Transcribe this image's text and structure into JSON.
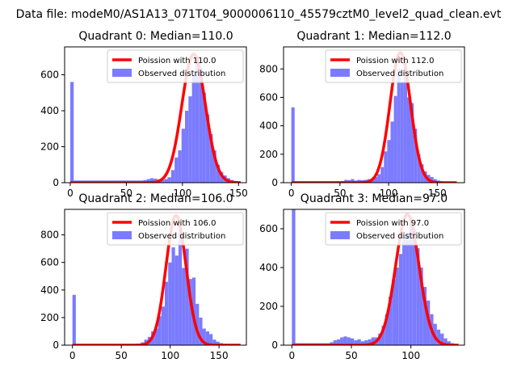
{
  "suptitle": "Data file: modeM0/AS1A13_071T04_9000006110_45579cztM0_level2_quad_clean.evt",
  "colors": {
    "bars": "#7b7bff",
    "fit": "#ff0000",
    "axis": "#000000"
  },
  "chart_data": [
    {
      "type": "bar+line",
      "title": "Quadrant 0: Median=110.0",
      "xlim": [
        -5,
        157
      ],
      "ylim": [
        0,
        755
      ],
      "xticks": [
        0,
        50,
        100,
        150
      ],
      "yticks": [
        0,
        200,
        400,
        600
      ],
      "legend": {
        "placement": "top-right",
        "line_label": "Poission with 110.0",
        "bar_label": "Observed distribution"
      },
      "fit": {
        "name": "Poission with 110.0",
        "mean": 110,
        "peak": 715,
        "x_start": 0,
        "x_end": 152
      },
      "histogram": {
        "bin_width": 3.1,
        "bins": [
          {
            "x": 0,
            "y": 560
          },
          {
            "x": 3.1,
            "y": 12
          },
          {
            "x": 6.2,
            "y": 12
          },
          {
            "x": 9.3,
            "y": 12
          },
          {
            "x": 12.4,
            "y": 12
          },
          {
            "x": 15.5,
            "y": 12
          },
          {
            "x": 18.6,
            "y": 12
          },
          {
            "x": 21.7,
            "y": 12
          },
          {
            "x": 24.8,
            "y": 12
          },
          {
            "x": 27.9,
            "y": 12
          },
          {
            "x": 31,
            "y": 12
          },
          {
            "x": 34.1,
            "y": 12
          },
          {
            "x": 37.2,
            "y": 12
          },
          {
            "x": 40.3,
            "y": 12
          },
          {
            "x": 43.4,
            "y": 12
          },
          {
            "x": 46.5,
            "y": 12
          },
          {
            "x": 49.6,
            "y": 12
          },
          {
            "x": 52.7,
            "y": 12
          },
          {
            "x": 55.8,
            "y": 12
          },
          {
            "x": 58.9,
            "y": 12
          },
          {
            "x": 62,
            "y": 12
          },
          {
            "x": 65.1,
            "y": 15
          },
          {
            "x": 68.2,
            "y": 20
          },
          {
            "x": 71.3,
            "y": 25
          },
          {
            "x": 74.4,
            "y": 22
          },
          {
            "x": 77.5,
            "y": 18
          },
          {
            "x": 80.6,
            "y": 15
          },
          {
            "x": 83.7,
            "y": 20
          },
          {
            "x": 86.8,
            "y": 30
          },
          {
            "x": 89.9,
            "y": 70
          },
          {
            "x": 93,
            "y": 140
          },
          {
            "x": 96.1,
            "y": 180
          },
          {
            "x": 99.2,
            "y": 300
          },
          {
            "x": 102.3,
            "y": 400
          },
          {
            "x": 105.4,
            "y": 480
          },
          {
            "x": 108.5,
            "y": 600
          },
          {
            "x": 111.6,
            "y": 700
          },
          {
            "x": 114.7,
            "y": 640
          },
          {
            "x": 117.8,
            "y": 500
          },
          {
            "x": 120.9,
            "y": 380
          },
          {
            "x": 124,
            "y": 270
          },
          {
            "x": 127.1,
            "y": 180
          },
          {
            "x": 130.2,
            "y": 100
          },
          {
            "x": 133.3,
            "y": 60
          },
          {
            "x": 136.4,
            "y": 40
          },
          {
            "x": 139.5,
            "y": 25
          },
          {
            "x": 142.6,
            "y": 15
          },
          {
            "x": 145.7,
            "y": 8
          },
          {
            "x": 148.8,
            "y": 4
          }
        ]
      }
    },
    {
      "type": "bar+line",
      "title": "Quadrant 1: Median=112.0",
      "xlim": [
        -8,
        178
      ],
      "ylim": [
        0,
        955
      ],
      "xticks": [
        0,
        50,
        100,
        150
      ],
      "yticks": [
        0,
        200,
        400,
        600,
        800
      ],
      "legend": {
        "placement": "top-right",
        "line_label": "Poission with 112.0",
        "bar_label": "Observed distribution"
      },
      "fit": {
        "name": "Poission with 112.0",
        "mean": 112,
        "peak": 915,
        "x_start": 0,
        "x_end": 170
      },
      "histogram": {
        "bin_width": 3.4,
        "bins": [
          {
            "x": 0,
            "y": 530
          },
          {
            "x": 3.4,
            "y": 10
          },
          {
            "x": 6.8,
            "y": 10
          },
          {
            "x": 10.2,
            "y": 10
          },
          {
            "x": 13.6,
            "y": 10
          },
          {
            "x": 17,
            "y": 10
          },
          {
            "x": 20.4,
            "y": 10
          },
          {
            "x": 23.8,
            "y": 10
          },
          {
            "x": 27.2,
            "y": 10
          },
          {
            "x": 30.6,
            "y": 10
          },
          {
            "x": 34,
            "y": 10
          },
          {
            "x": 37.4,
            "y": 10
          },
          {
            "x": 40.8,
            "y": 10
          },
          {
            "x": 44.2,
            "y": 10
          },
          {
            "x": 47.6,
            "y": 10
          },
          {
            "x": 51,
            "y": 12
          },
          {
            "x": 54.4,
            "y": 20
          },
          {
            "x": 57.8,
            "y": 18
          },
          {
            "x": 61.2,
            "y": 25
          },
          {
            "x": 64.6,
            "y": 15
          },
          {
            "x": 68,
            "y": 20
          },
          {
            "x": 71.4,
            "y": 18
          },
          {
            "x": 74.8,
            "y": 20
          },
          {
            "x": 78.2,
            "y": 25
          },
          {
            "x": 81.6,
            "y": 30
          },
          {
            "x": 85,
            "y": 40
          },
          {
            "x": 88.4,
            "y": 60
          },
          {
            "x": 91.8,
            "y": 110
          },
          {
            "x": 95.2,
            "y": 220
          },
          {
            "x": 98.6,
            "y": 300
          },
          {
            "x": 102,
            "y": 430
          },
          {
            "x": 105.4,
            "y": 610
          },
          {
            "x": 108.8,
            "y": 800
          },
          {
            "x": 112.2,
            "y": 710
          },
          {
            "x": 115.6,
            "y": 850
          },
          {
            "x": 119,
            "y": 600
          },
          {
            "x": 122.4,
            "y": 560
          },
          {
            "x": 125.8,
            "y": 380
          },
          {
            "x": 129.2,
            "y": 200
          },
          {
            "x": 132.6,
            "y": 130
          },
          {
            "x": 136,
            "y": 80
          },
          {
            "x": 139.4,
            "y": 55
          },
          {
            "x": 142.8,
            "y": 40
          },
          {
            "x": 146.2,
            "y": 25
          },
          {
            "x": 149.6,
            "y": 15
          },
          {
            "x": 153,
            "y": 10
          },
          {
            "x": 156.4,
            "y": 6
          },
          {
            "x": 159.8,
            "y": 4
          },
          {
            "x": 163.2,
            "y": 2
          },
          {
            "x": 166.6,
            "y": 2
          }
        ]
      }
    },
    {
      "type": "bar+line",
      "title": "Quadrant 2: Median=106.0",
      "xlim": [
        -8,
        178
      ],
      "ylim": [
        0,
        985
      ],
      "xticks": [
        0,
        50,
        100,
        150
      ],
      "yticks": [
        0,
        200,
        400,
        600,
        800
      ],
      "legend": {
        "placement": "top-right",
        "line_label": "Poission with 106.0",
        "bar_label": "Observed distribution"
      },
      "fit": {
        "name": "Poission with 106.0",
        "mean": 106,
        "peak": 940,
        "x_start": 0,
        "x_end": 172
      },
      "histogram": {
        "bin_width": 3.5,
        "bins": [
          {
            "x": 0,
            "y": 365
          },
          {
            "x": 3.5,
            "y": 8
          },
          {
            "x": 7,
            "y": 8
          },
          {
            "x": 10.5,
            "y": 8
          },
          {
            "x": 14,
            "y": 8
          },
          {
            "x": 17.5,
            "y": 8
          },
          {
            "x": 21,
            "y": 8
          },
          {
            "x": 24.5,
            "y": 8
          },
          {
            "x": 28,
            "y": 8
          },
          {
            "x": 31.5,
            "y": 8
          },
          {
            "x": 35,
            "y": 8
          },
          {
            "x": 38.5,
            "y": 8
          },
          {
            "x": 42,
            "y": 8
          },
          {
            "x": 45.5,
            "y": 8
          },
          {
            "x": 49,
            "y": 8
          },
          {
            "x": 52.5,
            "y": 8
          },
          {
            "x": 56,
            "y": 8
          },
          {
            "x": 59.5,
            "y": 8
          },
          {
            "x": 63,
            "y": 8
          },
          {
            "x": 66.5,
            "y": 10
          },
          {
            "x": 70,
            "y": 20
          },
          {
            "x": 73.5,
            "y": 40
          },
          {
            "x": 77,
            "y": 60
          },
          {
            "x": 80.5,
            "y": 100
          },
          {
            "x": 84,
            "y": 120
          },
          {
            "x": 87.5,
            "y": 210
          },
          {
            "x": 91,
            "y": 280
          },
          {
            "x": 94.5,
            "y": 460
          },
          {
            "x": 98,
            "y": 600
          },
          {
            "x": 101.5,
            "y": 710
          },
          {
            "x": 105,
            "y": 650
          },
          {
            "x": 108.5,
            "y": 850
          },
          {
            "x": 112,
            "y": 560
          },
          {
            "x": 115.5,
            "y": 700
          },
          {
            "x": 119,
            "y": 480
          },
          {
            "x": 122.5,
            "y": 490
          },
          {
            "x": 126,
            "y": 300
          },
          {
            "x": 129.5,
            "y": 200
          },
          {
            "x": 133,
            "y": 120
          },
          {
            "x": 136.5,
            "y": 100
          },
          {
            "x": 140,
            "y": 80
          },
          {
            "x": 143.5,
            "y": 40
          },
          {
            "x": 147,
            "y": 25
          },
          {
            "x": 150.5,
            "y": 15
          },
          {
            "x": 154,
            "y": 10
          },
          {
            "x": 157.5,
            "y": 6
          },
          {
            "x": 161,
            "y": 4
          },
          {
            "x": 164.5,
            "y": 3
          },
          {
            "x": 168,
            "y": 2
          }
        ]
      }
    },
    {
      "type": "bar+line",
      "title": "Quadrant 3: Median=97.0",
      "xlim": [
        -7,
        145
      ],
      "ylim": [
        0,
        700
      ],
      "xticks": [
        0,
        50,
        100
      ],
      "yticks": [
        0,
        200,
        400,
        600
      ],
      "legend": {
        "placement": "top-right",
        "line_label": "Poission with 97.0",
        "bar_label": "Observed distribution"
      },
      "fit": {
        "name": "Poission with 97.0",
        "mean": 97,
        "peak": 675,
        "x_start": 0,
        "x_end": 140
      },
      "histogram": {
        "bin_width": 2.9,
        "bins": [
          {
            "x": 0,
            "y": 700
          },
          {
            "x": 2.9,
            "y": 10
          },
          {
            "x": 5.8,
            "y": 10
          },
          {
            "x": 8.7,
            "y": 10
          },
          {
            "x": 11.6,
            "y": 10
          },
          {
            "x": 14.5,
            "y": 10
          },
          {
            "x": 17.4,
            "y": 10
          },
          {
            "x": 20.3,
            "y": 10
          },
          {
            "x": 23.2,
            "y": 10
          },
          {
            "x": 26.1,
            "y": 10
          },
          {
            "x": 29,
            "y": 10
          },
          {
            "x": 31.9,
            "y": 15
          },
          {
            "x": 34.8,
            "y": 25
          },
          {
            "x": 37.7,
            "y": 30
          },
          {
            "x": 40.6,
            "y": 40
          },
          {
            "x": 43.5,
            "y": 45
          },
          {
            "x": 46.4,
            "y": 40
          },
          {
            "x": 49.3,
            "y": 35
          },
          {
            "x": 52.2,
            "y": 25
          },
          {
            "x": 55.1,
            "y": 30
          },
          {
            "x": 58,
            "y": 20
          },
          {
            "x": 60.9,
            "y": 25
          },
          {
            "x": 63.8,
            "y": 30
          },
          {
            "x": 66.7,
            "y": 40
          },
          {
            "x": 69.6,
            "y": 40
          },
          {
            "x": 72.5,
            "y": 60
          },
          {
            "x": 75.4,
            "y": 100
          },
          {
            "x": 78.3,
            "y": 160
          },
          {
            "x": 81.2,
            "y": 250
          },
          {
            "x": 84.1,
            "y": 340
          },
          {
            "x": 87,
            "y": 400
          },
          {
            "x": 89.9,
            "y": 470
          },
          {
            "x": 92.8,
            "y": 560
          },
          {
            "x": 95.7,
            "y": 580
          },
          {
            "x": 98.6,
            "y": 660
          },
          {
            "x": 101.5,
            "y": 600
          },
          {
            "x": 104.4,
            "y": 500
          },
          {
            "x": 107.3,
            "y": 400
          },
          {
            "x": 110.2,
            "y": 300
          },
          {
            "x": 113.1,
            "y": 230
          },
          {
            "x": 116,
            "y": 160
          },
          {
            "x": 118.9,
            "y": 110
          },
          {
            "x": 121.8,
            "y": 80
          },
          {
            "x": 124.7,
            "y": 60
          },
          {
            "x": 127.6,
            "y": 35
          },
          {
            "x": 130.5,
            "y": 20
          },
          {
            "x": 133.4,
            "y": 10
          },
          {
            "x": 136.3,
            "y": 5
          }
        ]
      }
    }
  ]
}
